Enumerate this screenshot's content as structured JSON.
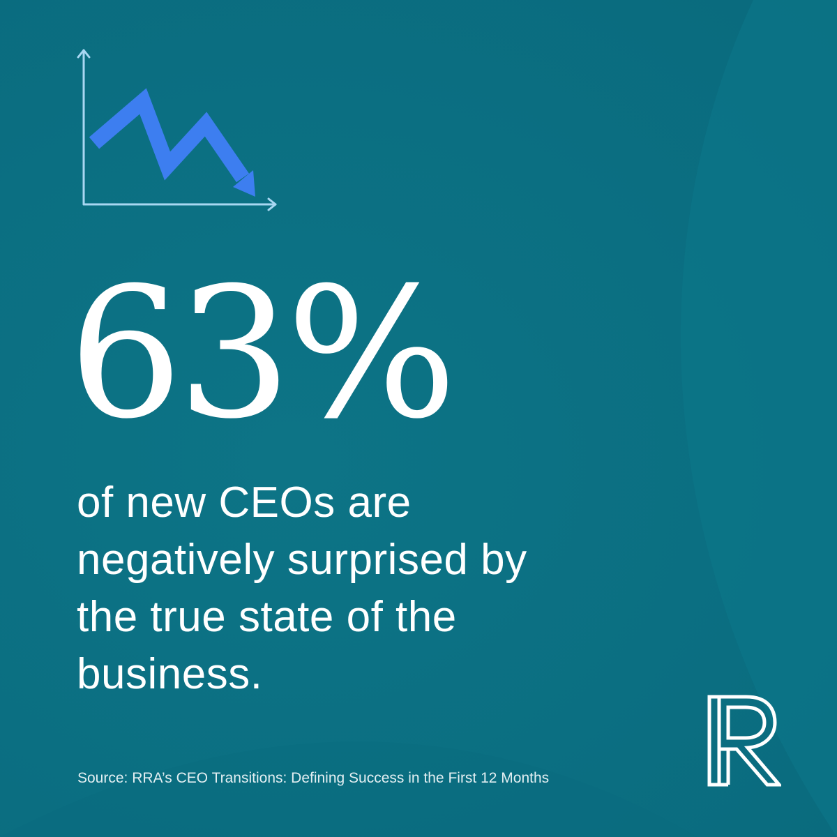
{
  "stat": {
    "value": "63%",
    "description": "of new CEOs are negatively surprised by the true state of the business."
  },
  "source": "Source: RRA’s CEO Transitions: Defining Success in the First 12 Months",
  "graphic": {
    "icon": "downward-trend-chart-icon",
    "axis_color": "#a9d7f2",
    "line_color": "#3d7ef0"
  },
  "brand": {
    "logo_icon": "r-monogram-logo-icon",
    "logo_letter": "R"
  },
  "colors": {
    "background": "#0b7285",
    "text": "#ffffff"
  }
}
